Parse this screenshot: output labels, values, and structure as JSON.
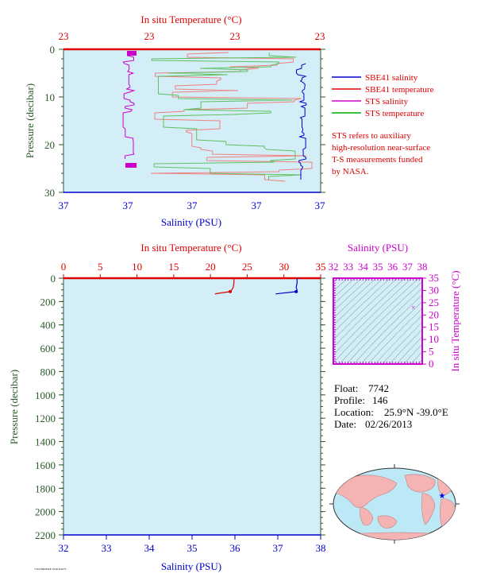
{
  "colors": {
    "plot_bg": "#d4eef8",
    "red": "#dd0000",
    "blue": "#0000cc",
    "magenta": "#cc00cc",
    "green": "#00aa00",
    "dark_green": "#2a5a2a",
    "light_red": "#f08080",
    "light_green": "#60c060",
    "map_ocean": "#bde8f6",
    "map_land": "#f4b4b4",
    "ts_lines": "#8aaab2"
  },
  "top_panel": {
    "top_axis_title": "In situ Temperature (°C)",
    "top_ticks": [
      "23",
      "23",
      "23",
      "23"
    ],
    "bottom_axis_title": "Salinity (PSU)",
    "bottom_ticks": [
      "37",
      "37",
      "37",
      "37",
      "37"
    ],
    "y_axis_title": "Pressure (decibar)",
    "y_ticks": [
      "0",
      "10",
      "20",
      "30"
    ],
    "legend": [
      {
        "label": "SBE41 salinity",
        "color": "#0000cc"
      },
      {
        "label": "SBE41 temperature",
        "color": "#dd0000"
      },
      {
        "label": "STS salinity",
        "color": "#cc00cc"
      },
      {
        "label": "STS temperature",
        "color": "#00aa00"
      }
    ],
    "note": [
      "STS refers to auxiliary",
      "high-resolution near-surface",
      "T-S measurements funded",
      "by NASA."
    ]
  },
  "bottom_panel": {
    "top_axis_title": "In situ Temperature (°C)",
    "top_ticks": [
      "0",
      "5",
      "10",
      "15",
      "20",
      "25",
      "30",
      "35"
    ],
    "bottom_axis_title": "Salinity (PSU)",
    "bottom_ticks": [
      "32",
      "33",
      "34",
      "35",
      "36",
      "37",
      "38"
    ],
    "y_axis_title": "Pressure (decibar)",
    "y_ticks": [
      "0",
      "200",
      "400",
      "600",
      "800",
      "1000",
      "1200",
      "1400",
      "1600",
      "1800",
      "2000",
      "2200"
    ]
  },
  "ts_panel": {
    "top_axis_title": "Salinity (PSU)",
    "top_ticks": [
      "32",
      "33",
      "34",
      "35",
      "36",
      "37",
      "38"
    ],
    "right_axis_title": "In situ Temperature (°C)",
    "right_ticks": [
      "0",
      "5",
      "10",
      "15",
      "20",
      "25",
      "30",
      "35"
    ]
  },
  "info": {
    "float_label": "Float:",
    "float": "7742",
    "profile_label": "Profile:",
    "profile": "146",
    "location_label": "Location:",
    "location": "25.9°N  -39.0°E",
    "date_label": "Date:",
    "date": "02/26/2013"
  },
  "footer_text": "7742 PROFILE 0146.NAVY",
  "chart_data": [
    {
      "type": "line",
      "panel": "near-surface profile",
      "ylim": [
        30,
        0
      ],
      "series": [
        {
          "name": "SBE41 salinity",
          "color": "#0000cc",
          "points": [
            [
              36.9,
              4
            ],
            [
              36.9,
              8
            ],
            [
              36.9,
              12
            ],
            [
              36.9,
              16
            ],
            [
              36.9,
              20
            ],
            [
              36.9,
              24
            ],
            [
              36.9,
              27
            ]
          ]
        },
        {
          "name": "SBE41 temperature",
          "color": "#dd0000",
          "points": [
            [
              23.0,
              4
            ],
            [
              23.0,
              8
            ],
            [
              23.0,
              12
            ],
            [
              23.0,
              16
            ],
            [
              23.0,
              20
            ],
            [
              23.0,
              24
            ],
            [
              23.0,
              27
            ]
          ]
        },
        {
          "name": "STS salinity",
          "color": "#cc00cc",
          "points": [
            [
              37.0,
              0
            ],
            [
              37.0,
              5
            ],
            [
              37.0,
              10
            ],
            [
              37.0,
              15
            ],
            [
              37.0,
              20
            ],
            [
              37.0,
              25
            ]
          ]
        },
        {
          "name": "STS temperature",
          "color": "#00aa00",
          "points": [
            [
              23.0,
              0
            ],
            [
              23.0,
              5
            ],
            [
              23.0,
              10
            ],
            [
              23.0,
              15
            ],
            [
              23.0,
              20
            ],
            [
              23.0,
              25
            ],
            [
              23.0,
              27
            ]
          ]
        }
      ]
    },
    {
      "type": "line",
      "panel": "full-depth profile",
      "temperature_range": [
        0,
        35
      ],
      "salinity_range": [
        32,
        38
      ],
      "ylim": [
        2200,
        0
      ],
      "series": [
        {
          "name": "temperature",
          "color": "#dd0000",
          "points": [
            [
              23.2,
              0
            ],
            [
              23.2,
              40
            ],
            [
              23.1,
              80
            ],
            [
              22.9,
              100
            ],
            [
              22.7,
              115
            ],
            [
              21.0,
              130
            ],
            [
              20.6,
              135
            ]
          ]
        },
        {
          "name": "salinity",
          "color": "#0000cc",
          "points": [
            [
              37.45,
              0
            ],
            [
              37.45,
              40
            ],
            [
              37.43,
              80
            ],
            [
              37.45,
              100
            ],
            [
              37.43,
              115
            ],
            [
              37.1,
              128
            ],
            [
              36.95,
              135
            ]
          ]
        }
      ]
    },
    {
      "type": "scatter",
      "panel": "T-S diagram",
      "xlim": [
        32,
        38
      ],
      "ylim": [
        0,
        35
      ],
      "points": [
        [
          37.4,
          23.0
        ]
      ]
    }
  ]
}
